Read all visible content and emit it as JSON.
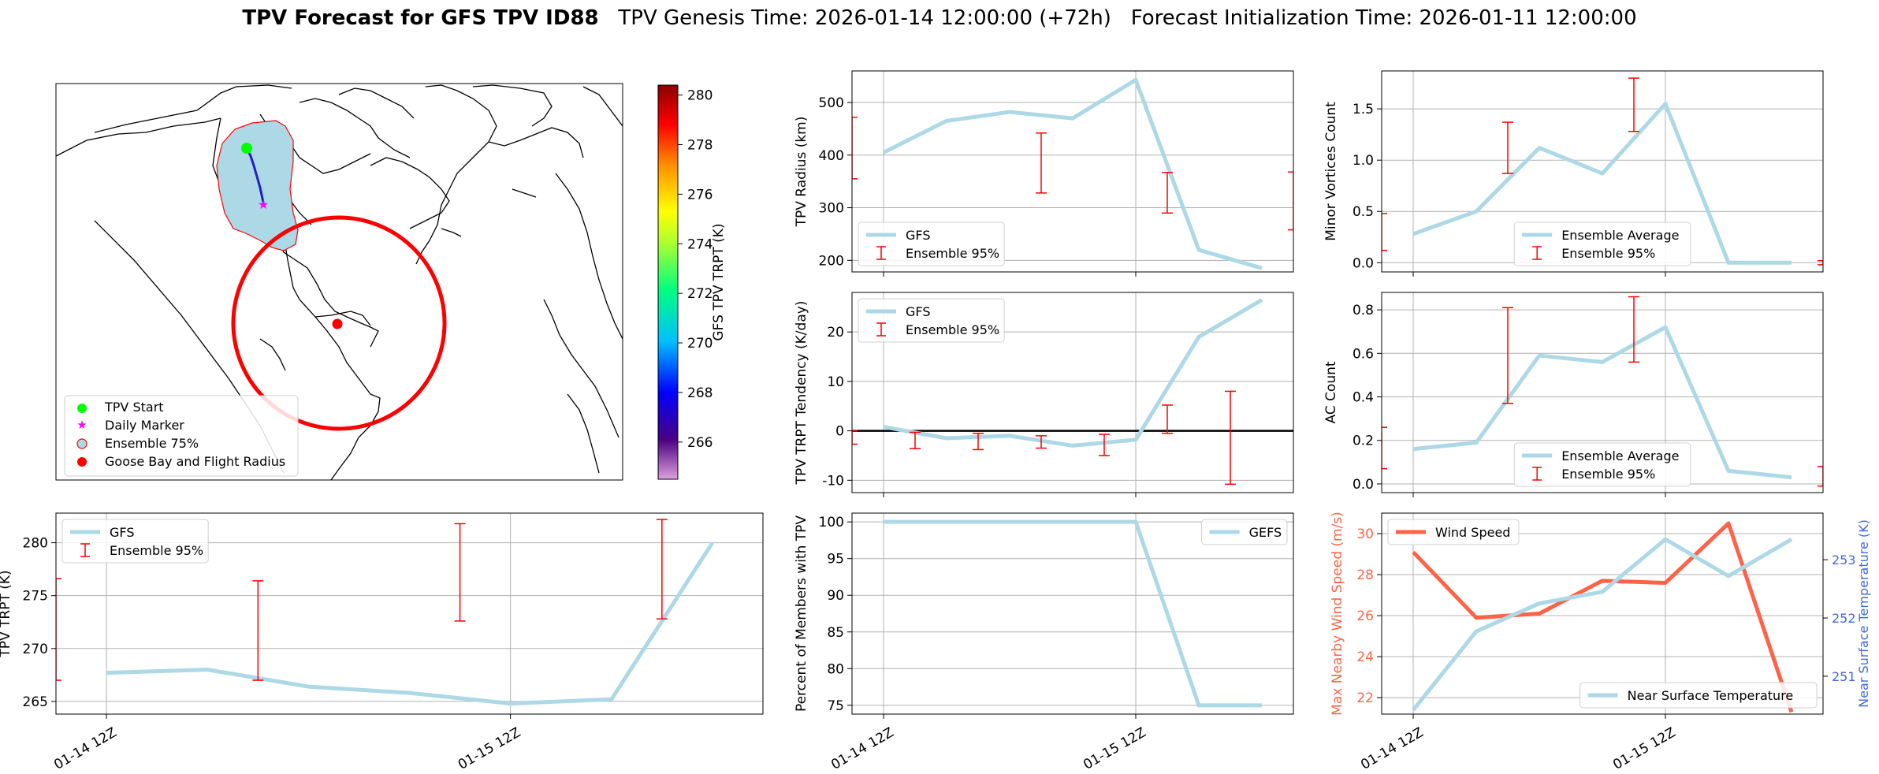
{
  "figure": {
    "title_bold": "TPV Forecast for GFS TPV ID88",
    "title_genesis": "TPV Genesis Time: 2026-01-14 12:00:00 (+72h)",
    "title_init": "Forecast Initialization Time: 2026-01-11 12:00:00"
  },
  "colors": {
    "series": "#add8e6",
    "errorbar": "#ff0000",
    "wind": "#ff6347",
    "temp_axis": "#4169e1",
    "zero_line": "#000000"
  },
  "map_panel": {
    "legend": [
      "TPV Start",
      "Daily Marker",
      "Ensemble 75%",
      "Goose Bay and Flight Radius"
    ],
    "colorbar": {
      "label": "GFS TPV TRPT (K)",
      "ticks": [
        266,
        268,
        270,
        272,
        274,
        276,
        278,
        280
      ],
      "range": [
        264.5,
        280.4
      ]
    }
  },
  "chart_data": [
    {
      "id": "radius",
      "type": "line",
      "ylabel": "TPV Radius (km)",
      "ylim": [
        178,
        560
      ],
      "yticks": [
        200,
        300,
        400,
        500
      ],
      "x": [
        0,
        1,
        2,
        3,
        4,
        5,
        6
      ],
      "series": [
        {
          "name": "GFS",
          "values": [
            405,
            465,
            482,
            470,
            543,
            220,
            185
          ]
        }
      ],
      "errorbars": {
        "name": "Ensemble 95%",
        "x": [
          -0.5,
          2.5,
          4.5,
          6.5
        ],
        "low": [
          355,
          328,
          290,
          258
        ],
        "high": [
          472,
          442,
          367,
          368
        ]
      },
      "legend": [
        "GFS",
        "Ensemble 95%"
      ],
      "legend_loc": "lower-left"
    },
    {
      "id": "minor",
      "type": "line",
      "ylabel": "Minor Vortices Count",
      "ylim": [
        -0.09,
        1.87
      ],
      "yticks": [
        0.0,
        0.5,
        1.0,
        1.5
      ],
      "x": [
        0,
        1,
        2,
        3,
        4,
        5,
        6
      ],
      "series": [
        {
          "name": "Ensemble Average",
          "values": [
            0.28,
            0.5,
            1.12,
            0.87,
            1.55,
            0.0,
            0.0
          ]
        }
      ],
      "errorbars": {
        "name": "Ensemble 95%",
        "x": [
          -0.5,
          1.5,
          3.5,
          6.5
        ],
        "low": [
          0.12,
          0.87,
          1.28,
          -0.02
        ],
        "high": [
          0.48,
          1.37,
          1.8,
          0.02
        ]
      },
      "legend": [
        "Ensemble Average",
        "Ensemble 95%"
      ],
      "legend_loc": "lower-center"
    },
    {
      "id": "tendency",
      "type": "line",
      "ylabel": "TPV TRPT Tendency (K/day)",
      "ylim": [
        -12.5,
        28
      ],
      "yticks": [
        -10,
        0,
        10,
        20
      ],
      "x": [
        0,
        1,
        2,
        3,
        4,
        5,
        6
      ],
      "series": [
        {
          "name": "GFS",
          "values": [
            0.8,
            -1.5,
            -1.0,
            -3.0,
            -1.8,
            19.0,
            26.5
          ]
        }
      ],
      "errorbars": {
        "name": "Ensemble 95%",
        "x": [
          -0.5,
          0.5,
          1.5,
          2.5,
          3.5,
          4.5,
          5.5
        ],
        "low": [
          -2.7,
          -3.6,
          -3.8,
          -3.5,
          -5.0,
          -0.5,
          -10.8
        ],
        "high": [
          0.0,
          -0.3,
          -0.5,
          -1.0,
          -0.7,
          5.2,
          8.0
        ]
      },
      "hline": 0,
      "legend": [
        "GFS",
        "Ensemble 95%"
      ],
      "legend_loc": "upper-left"
    },
    {
      "id": "ac",
      "type": "line",
      "ylabel": "AC Count",
      "ylim": [
        -0.04,
        0.88
      ],
      "yticks": [
        0.0,
        0.2,
        0.4,
        0.6,
        0.8
      ],
      "x": [
        0,
        1,
        2,
        3,
        4,
        5,
        6
      ],
      "series": [
        {
          "name": "Ensemble Average",
          "values": [
            0.16,
            0.19,
            0.59,
            0.56,
            0.72,
            0.06,
            0.03
          ]
        }
      ],
      "errorbars": {
        "name": "Ensemble 95%",
        "x": [
          -0.5,
          1.5,
          3.5,
          6.5
        ],
        "low": [
          0.07,
          0.37,
          0.56,
          -0.01
        ],
        "high": [
          0.26,
          0.81,
          0.86,
          0.08
        ]
      },
      "legend": [
        "Ensemble Average",
        "Ensemble 95%"
      ],
      "legend_loc": "lower-center"
    },
    {
      "id": "trpt",
      "type": "line",
      "ylabel": "TPV TRPT (K)",
      "ylim": [
        263.8,
        282.8
      ],
      "yticks": [
        265,
        270,
        275,
        280
      ],
      "x": [
        0,
        1,
        2,
        3,
        4,
        5,
        6
      ],
      "series": [
        {
          "name": "GFS",
          "values": [
            267.7,
            268.0,
            266.4,
            265.8,
            264.8,
            265.2,
            280.0
          ]
        }
      ],
      "errorbars": {
        "name": "Ensemble 95%",
        "x": [
          -0.5,
          1.5,
          3.5,
          5.5
        ],
        "low": [
          267.0,
          267.0,
          272.6,
          272.8
        ],
        "high": [
          276.6,
          276.4,
          281.8,
          282.2
        ]
      },
      "xticklabels": [
        "01-14 12Z",
        "01-15 12Z"
      ],
      "legend": [
        "GFS",
        "Ensemble 95%"
      ],
      "legend_loc": "upper-left"
    },
    {
      "id": "percent",
      "type": "line",
      "ylabel": "Percent of Members with TPV",
      "ylim": [
        73.8,
        101.2
      ],
      "yticks": [
        75,
        80,
        85,
        90,
        95,
        100
      ],
      "x": [
        0,
        1,
        2,
        3,
        4,
        5,
        6
      ],
      "series": [
        {
          "name": "GEFS",
          "values": [
            100,
            100,
            100,
            100,
            100,
            75,
            75
          ]
        }
      ],
      "xticklabels": [
        "01-14 12Z",
        "01-15 12Z"
      ],
      "legend": [
        "GEFS"
      ],
      "legend_loc": "upper-right"
    },
    {
      "id": "wind",
      "type": "line",
      "ylabel": "Max Nearby Wind Speed (m/s)",
      "ylabel2": "Near Surface Temperature (K)",
      "ylim": [
        21.2,
        31.0
      ],
      "yticks": [
        22,
        24,
        26,
        28,
        30
      ],
      "ylim2": [
        250.35,
        253.8
      ],
      "yticks2": [
        251,
        252,
        253
      ],
      "x": [
        0,
        1,
        2,
        3,
        4,
        5,
        6
      ],
      "series": [
        {
          "name": "Wind Speed",
          "values": [
            29.1,
            25.9,
            26.1,
            27.7,
            27.6,
            30.5,
            21.3
          ]
        }
      ],
      "series2": [
        {
          "name": "Near Surface Temperature",
          "values": [
            250.42,
            251.77,
            252.25,
            252.45,
            253.35,
            252.72,
            253.35
          ]
        }
      ],
      "xticklabels": [
        "01-14 12Z",
        "01-15 12Z"
      ],
      "legend": [
        "Wind Speed"
      ],
      "legend2": [
        "Near Surface Temperature"
      ]
    }
  ]
}
